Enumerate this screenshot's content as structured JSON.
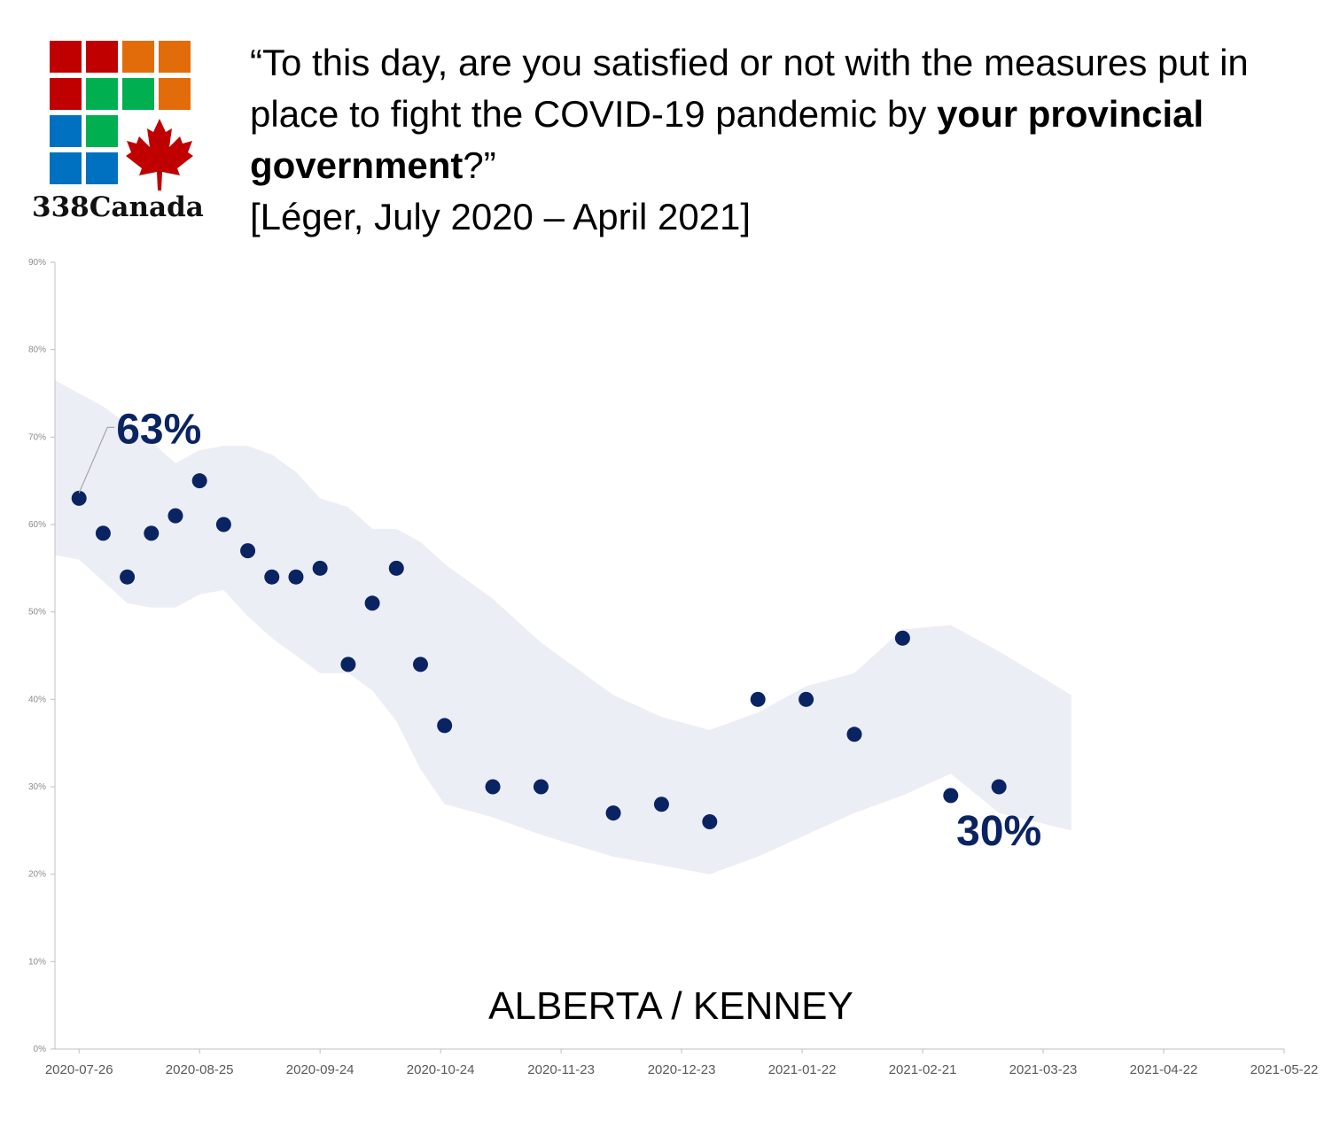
{
  "logo": {
    "text": "338Canada",
    "tile_colors": [
      "#c00000",
      "#c00000",
      "#e36c0a",
      "#e36c0a",
      "#c00000",
      "#00b050",
      "#00b050",
      "#e36c0a",
      "#0070c0",
      "#00b050",
      "",
      "",
      "#0070c0",
      "#0070c0",
      "",
      ""
    ],
    "leaf_color": "#c00000"
  },
  "header": {
    "q_part1": "“To this day, are you satisfied or not with the measures put in place to fight the COVID-19 pandemic by ",
    "q_bold1": "your provincial government",
    "q_part2": "?”",
    "source": "[Léger, July 2020 – April 2021]"
  },
  "chart_data": {
    "type": "scatter",
    "title": "ALBERTA / KENNEY",
    "xlabel": "",
    "ylabel": "",
    "x_ticks": [
      "2020-07-26",
      "2020-08-25",
      "2020-09-24",
      "2020-10-24",
      "2020-11-23",
      "2020-12-23",
      "2021-01-22",
      "2021-02-21",
      "2021-03-23",
      "2021-04-22",
      "2021-05-22"
    ],
    "xlim": [
      "2020-07-20",
      "2021-05-22"
    ],
    "y_ticks": [
      "0%",
      "10%",
      "20%",
      "30%",
      "40%",
      "50%",
      "60%",
      "70%",
      "80%",
      "90%"
    ],
    "ylim": [
      0,
      90
    ],
    "grid": false,
    "point_color": "#0a2463",
    "band_color": "#eceef5",
    "series": [
      {
        "points": [
          {
            "x": "2020-07-26",
            "y": 63
          },
          {
            "x": "2020-08-01",
            "y": 59
          },
          {
            "x": "2020-08-07",
            "y": 54
          },
          {
            "x": "2020-08-13",
            "y": 59
          },
          {
            "x": "2020-08-19",
            "y": 61
          },
          {
            "x": "2020-08-25",
            "y": 65
          },
          {
            "x": "2020-08-31",
            "y": 60
          },
          {
            "x": "2020-09-06",
            "y": 57
          },
          {
            "x": "2020-09-12",
            "y": 54
          },
          {
            "x": "2020-09-18",
            "y": 54
          },
          {
            "x": "2020-09-24",
            "y": 55
          },
          {
            "x": "2020-10-01",
            "y": 44
          },
          {
            "x": "2020-10-07",
            "y": 51
          },
          {
            "x": "2020-10-13",
            "y": 55
          },
          {
            "x": "2020-10-19",
            "y": 44
          },
          {
            "x": "2020-10-25",
            "y": 37
          },
          {
            "x": "2020-11-06",
            "y": 30
          },
          {
            "x": "2020-11-18",
            "y": 30
          },
          {
            "x": "2020-12-06",
            "y": 27
          },
          {
            "x": "2020-12-18",
            "y": 28
          },
          {
            "x": "2020-12-30",
            "y": 26
          },
          {
            "x": "2021-01-11",
            "y": 40
          },
          {
            "x": "2021-01-23",
            "y": 40
          },
          {
            "x": "2021-02-04",
            "y": 36
          },
          {
            "x": "2021-02-16",
            "y": 47
          },
          {
            "x": "2021-02-28",
            "y": 29
          },
          {
            "x": "2021-03-12",
            "y": 30
          }
        ]
      }
    ],
    "band": {
      "x": [
        "2020-07-20",
        "2020-07-26",
        "2020-08-01",
        "2020-08-07",
        "2020-08-13",
        "2020-08-19",
        "2020-08-25",
        "2020-08-31",
        "2020-09-06",
        "2020-09-12",
        "2020-09-18",
        "2020-09-24",
        "2020-10-01",
        "2020-10-07",
        "2020-10-13",
        "2020-10-19",
        "2020-10-25",
        "2020-11-06",
        "2020-11-18",
        "2020-12-06",
        "2020-12-18",
        "2020-12-30",
        "2021-01-11",
        "2021-01-23",
        "2021-02-04",
        "2021-02-16",
        "2021-02-28",
        "2021-03-12",
        "2021-03-30"
      ],
      "upper": [
        76.5,
        75,
        73.5,
        71.5,
        69.5,
        67,
        68.5,
        69,
        69,
        68,
        66,
        63,
        62,
        59.5,
        59.5,
        58,
        55.5,
        51.5,
        46.5,
        40.5,
        38,
        36.5,
        38.5,
        41.5,
        43,
        48,
        48.5,
        45.5,
        40.5
      ],
      "lower": [
        56.5,
        56,
        53.5,
        51,
        50.5,
        50.5,
        52,
        52.5,
        49.5,
        47,
        45,
        43,
        43,
        41,
        37.5,
        32,
        28,
        26.5,
        24.5,
        22,
        21,
        20,
        22,
        24.5,
        27,
        29,
        31.5,
        27,
        25
      ]
    },
    "annotations": [
      {
        "text": "63%",
        "x": "2020-07-26",
        "y": 63
      },
      {
        "text": "30%",
        "x": "2021-03-12",
        "y": 30
      }
    ]
  }
}
